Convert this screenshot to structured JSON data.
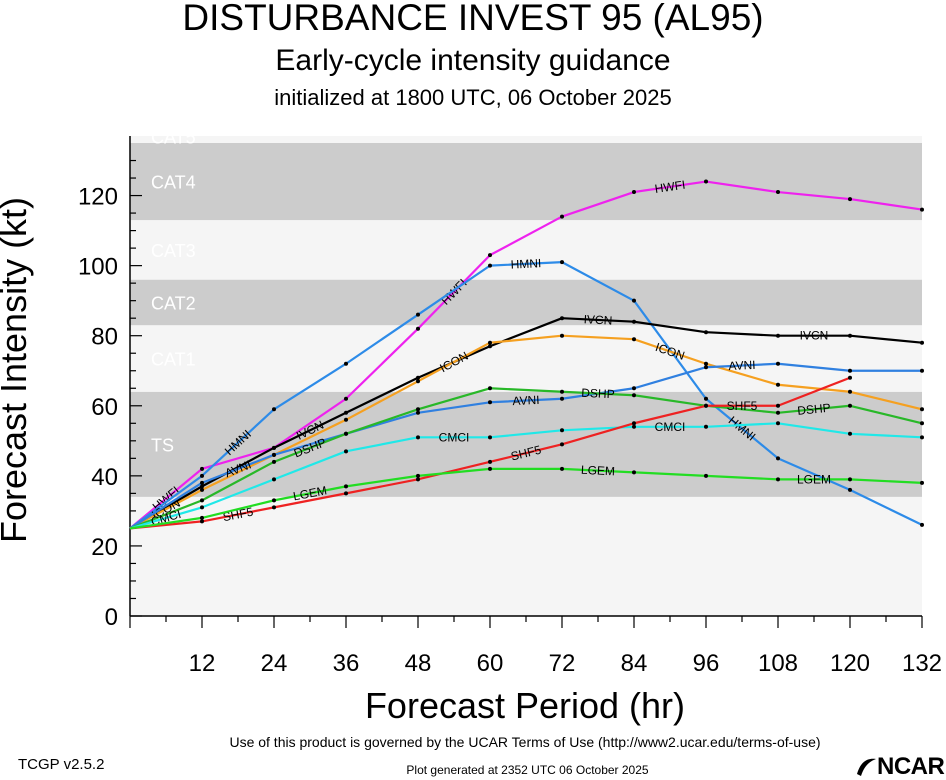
{
  "header": {
    "title": "DISTURBANCE INVEST 95 (AL95)",
    "subtitle": "Early-cycle intensity guidance",
    "init": "initialized at 1800 UTC, 06 October 2025"
  },
  "footer": {
    "terms": "Use of this product is governed by the UCAR Terms of Use (http://www2.ucar.edu/terms-of-use)",
    "version": "TCGP v2.5.2",
    "generated": "Plot generated at 2352 UTC   06 October 2025",
    "logo": "NCAR"
  },
  "chart_data": {
    "type": "line",
    "xlabel": "Forecast Period (hr)",
    "ylabel": "Forecast Intensity (kt)",
    "xlim": [
      0,
      132
    ],
    "ylim": [
      0,
      137
    ],
    "xticks": [
      12,
      24,
      36,
      48,
      60,
      72,
      84,
      96,
      108,
      120,
      132
    ],
    "yticks": [
      0,
      20,
      40,
      60,
      80,
      100,
      120
    ],
    "grid": false,
    "categories_bands": [
      {
        "label": "TS",
        "ymin": 34,
        "ymax": 64,
        "shade": "#cccccc"
      },
      {
        "label": "CAT1",
        "ymin": 64,
        "ymax": 83,
        "shade": "#f5f5f5"
      },
      {
        "label": "CAT2",
        "ymin": 83,
        "ymax": 96,
        "shade": "#cccccc"
      },
      {
        "label": "CAT3",
        "ymin": 96,
        "ymax": 113,
        "shade": "#f5f5f5"
      },
      {
        "label": "CAT4",
        "ymin": 113,
        "ymax": 135,
        "shade": "#cccccc"
      },
      {
        "label": "CAT5",
        "ymin": 135,
        "ymax": 137,
        "shade": "#f5f5f5"
      }
    ],
    "below_ts_shade": "#f5f5f5",
    "x": [
      0,
      12,
      24,
      36,
      48,
      60,
      72,
      84,
      96,
      108,
      120,
      132
    ],
    "series": [
      {
        "name": "HWFI",
        "color": "#ee22ee",
        "values": [
          25,
          42,
          48,
          62,
          82,
          103,
          114,
          121,
          124,
          121,
          119,
          116
        ]
      },
      {
        "name": "HMNI",
        "color": "#2d8be8",
        "values": [
          25,
          40,
          59,
          72,
          86,
          100,
          101,
          90,
          62,
          45,
          36,
          26
        ]
      },
      {
        "name": "IVCN",
        "color": "#000000",
        "values": [
          25,
          37,
          48,
          58,
          68,
          77,
          85,
          84,
          81,
          80,
          80,
          78
        ]
      },
      {
        "name": "ICON",
        "color": "#f5a020",
        "values": [
          25,
          36,
          46,
          56,
          67,
          78,
          80,
          79,
          72,
          66,
          64,
          59
        ]
      },
      {
        "name": "AVNI",
        "color": "#3080e0",
        "values": [
          25,
          38,
          46,
          52,
          58,
          61,
          62,
          65,
          71,
          72,
          70,
          70
        ]
      },
      {
        "name": "DSHP",
        "color": "#28b828",
        "values": [
          25,
          33,
          44,
          52,
          59,
          65,
          64,
          63,
          60,
          58,
          60,
          55
        ]
      },
      {
        "name": "CMCI",
        "color": "#20e8e8",
        "values": [
          25,
          31,
          39,
          47,
          51,
          51,
          53,
          54,
          54,
          55,
          52,
          51
        ]
      },
      {
        "name": "SHF5",
        "color": "#ee2222",
        "values": [
          25,
          27,
          31,
          35,
          39,
          44,
          49,
          55,
          60,
          60,
          68,
          null
        ]
      },
      {
        "name": "LGEM",
        "color": "#22dd22",
        "values": [
          25,
          28,
          33,
          37,
          40,
          42,
          42,
          41,
          40,
          39,
          39,
          38
        ]
      }
    ]
  }
}
